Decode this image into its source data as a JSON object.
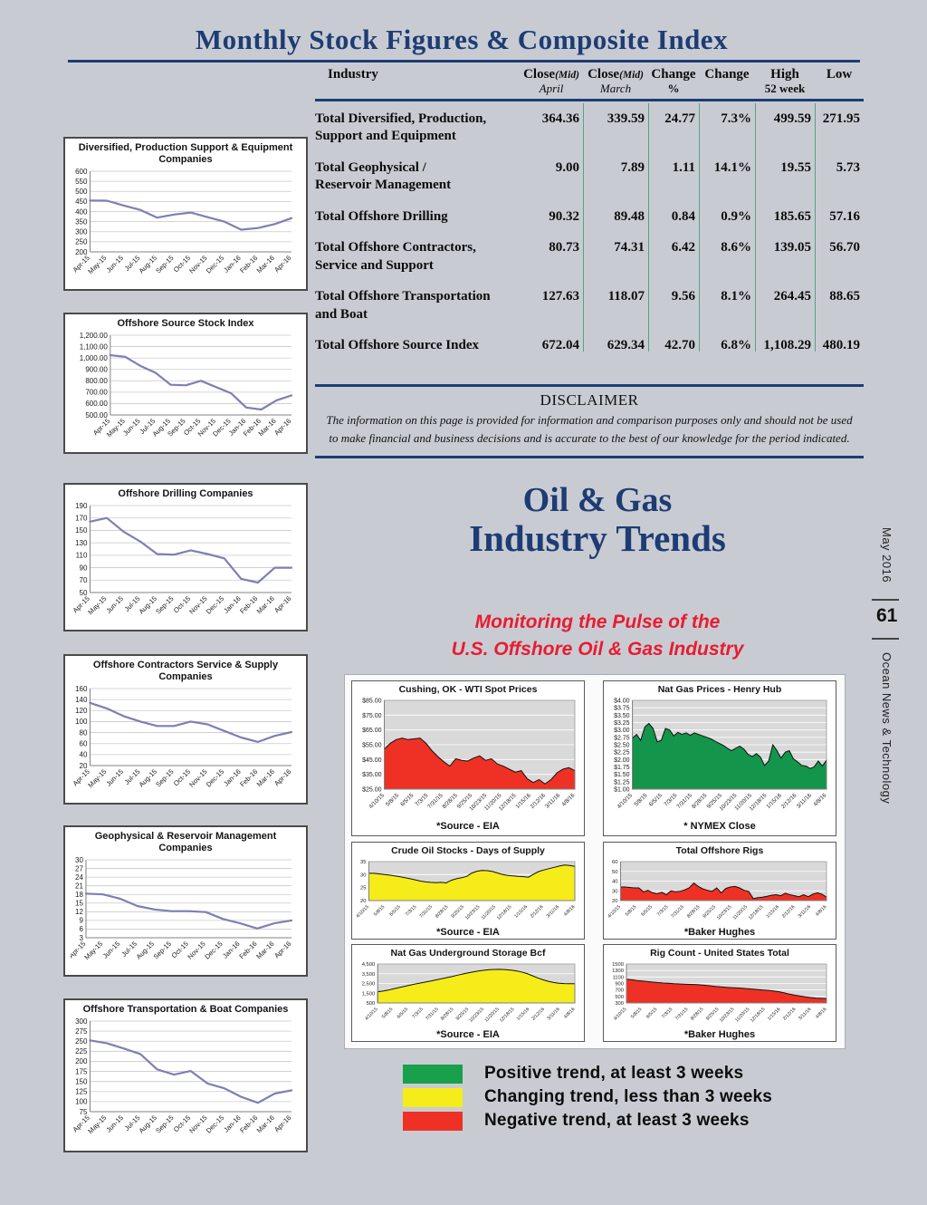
{
  "page": {
    "title": "Monthly Stock Figures & Composite Index"
  },
  "table": {
    "header": {
      "industry": "Industry",
      "cols": [
        {
          "main": "Close",
          "mid": "(Mid)",
          "sub": "April"
        },
        {
          "main": "Close",
          "mid": "(Mid)",
          "sub": "March"
        },
        {
          "main": "Change",
          "mid": "",
          "sub": "%"
        },
        {
          "main": "Change",
          "mid": "",
          "sub": ""
        },
        {
          "main": "High",
          "mid": "",
          "sub": "52 week"
        },
        {
          "main": "Low",
          "mid": "",
          "sub": ""
        }
      ]
    },
    "rows": [
      {
        "industry": "Total Diversified, Production,\nSupport and Equipment",
        "close_april": "364.36",
        "close_march": "339.59",
        "change": "24.77",
        "change_pct": "7.3%",
        "high": "499.59",
        "low": "271.95"
      },
      {
        "industry": "Total Geophysical /\nReservoir Management",
        "close_april": "9.00",
        "close_march": "7.89",
        "change": "1.11",
        "change_pct": "14.1%",
        "high": "19.55",
        "low": "5.73"
      },
      {
        "industry": "Total Offshore Drilling",
        "close_april": "90.32",
        "close_march": "89.48",
        "change": "0.84",
        "change_pct": "0.9%",
        "high": "185.65",
        "low": "57.16"
      },
      {
        "industry": "Total Offshore Contractors,\nService and Support",
        "close_april": "80.73",
        "close_march": "74.31",
        "change": "6.42",
        "change_pct": "8.6%",
        "high": "139.05",
        "low": "56.70"
      },
      {
        "industry": "Total Offshore Transportation\nand Boat",
        "close_april": "127.63",
        "close_march": "118.07",
        "change": "9.56",
        "change_pct": "8.1%",
        "high": "264.45",
        "low": "88.65"
      },
      {
        "industry": "Total Offshore Source Index",
        "close_april": "672.04",
        "close_march": "629.34",
        "change": "42.70",
        "change_pct": "6.8%",
        "high": "1,108.29",
        "low": "480.19"
      }
    ]
  },
  "disclaimer": {
    "title": "DISCLAIMER",
    "text": "The information on this page is provided for information and comparison purposes only and should not be used\nto make financial and business decisions and is accurate to the best of our knowledge for the period indicated."
  },
  "trends": {
    "title_line1": "Oil & Gas",
    "title_line2": "Industry Trends",
    "subtitle": "Monitoring the Pulse of the\nU.S. Offshore Oil & Gas Industry",
    "legend": [
      {
        "color": "#18a04a",
        "label": "Positive trend, at least 3 weeks"
      },
      {
        "color": "#f6ec19",
        "label": "Changing trend, less than 3 weeks"
      },
      {
        "color": "#ee3124",
        "label": "Negative trend, at least 3 weeks"
      }
    ]
  },
  "sidebar": {
    "issue": "May 2016",
    "page_number": "61",
    "publication": "Ocean News & Technology"
  },
  "chart_data": [
    {
      "id": "diversified-production-support",
      "type": "line",
      "title": "Diversified, Production Support & Equipment\nCompanies",
      "x_labels": [
        "Apr-15",
        "May-15",
        "Jun-15",
        "Jul-15",
        "Aug-15",
        "Sep-15",
        "Oct-15",
        "Nov-15",
        "Dec-15",
        "Jan-16",
        "Feb-16",
        "Mar-16",
        "Apr-16"
      ],
      "yticks": [
        "600",
        "550",
        "500",
        "450",
        "400",
        "350",
        "300",
        "250",
        "200"
      ],
      "ylim": [
        200,
        600
      ],
      "values": [
        455,
        454,
        430,
        408,
        370,
        385,
        395,
        372,
        350,
        310,
        318,
        338,
        367
      ],
      "line_color": "#7e7fb3"
    },
    {
      "id": "offshore-source-stock-index",
      "type": "line",
      "title": "Offshore Source Stock Index",
      "x_labels": [
        "Apr-15",
        "May-15",
        "Jun-15",
        "Jul-15",
        "Aug-15",
        "Sep-15",
        "Oct-15",
        "Nov-15",
        "Dec-15",
        "Jan-16",
        "Feb-16",
        "Mar-16",
        "Apr-16"
      ],
      "yticks": [
        "1,200.00",
        "1,100.00",
        "1,000.00",
        "900.00",
        "800.00",
        "700.00",
        "600.00",
        "500.00"
      ],
      "ylim": [
        500,
        1200
      ],
      "values": [
        1025,
        1010,
        930,
        870,
        765,
        760,
        800,
        745,
        690,
        565,
        548,
        628,
        672
      ],
      "line_color": "#7e7fb3"
    },
    {
      "id": "offshore-drilling-companies",
      "type": "line",
      "title": "Offshore Drilling Companies",
      "x_labels": [
        "Apr-15",
        "May-15",
        "Jun-15",
        "Jul-15",
        "Aug-15",
        "Sep-15",
        "Oct-15",
        "Nov-15",
        "Dec-15",
        "Jan-16",
        "Feb-16",
        "Mar-16",
        "Apr-16"
      ],
      "yticks": [
        "190",
        "170",
        "150",
        "130",
        "110",
        "90",
        "70",
        "50"
      ],
      "ylim": [
        50,
        190
      ],
      "values": [
        164,
        170,
        148,
        132,
        112,
        111,
        118,
        112,
        105,
        72,
        66,
        90,
        90
      ],
      "line_color": "#7e7fb3"
    },
    {
      "id": "offshore-contractors-service-supply",
      "type": "line",
      "title": "Offshore Contractors Service & Supply\nCompanies",
      "x_labels": [
        "Apr-15",
        "May-15",
        "Jun-15",
        "Jul-15",
        "Aug-15",
        "Sep-15",
        "Oct-15",
        "Nov-15",
        "Dec-15",
        "Jan-16",
        "Feb-16",
        "Mar-16",
        "Apr-16"
      ],
      "yticks": [
        "160",
        "140",
        "120",
        "100",
        "80",
        "60",
        "40",
        "20"
      ],
      "ylim": [
        20,
        160
      ],
      "values": [
        134,
        124,
        110,
        100,
        92,
        92,
        100,
        95,
        83,
        71,
        63,
        74,
        81
      ],
      "line_color": "#7e7fb3"
    },
    {
      "id": "geophysical-reservoir-management",
      "type": "line",
      "title": "Geophysical & Reservoir Management\nCompanies",
      "x_labels": [
        "Apr-15",
        "May-15",
        "Jun-15",
        "Jul-15",
        "Aug-15",
        "Sep-15",
        "Oct-15",
        "Nov-15",
        "Dec-15",
        "Jan-16",
        "Feb-16",
        "Mar-16",
        "Apr-16"
      ],
      "yticks": [
        "30",
        "27",
        "24",
        "21",
        "18",
        "15",
        "12",
        "9",
        "6",
        "3"
      ],
      "ylim": [
        3,
        30
      ],
      "values": [
        18.3,
        18,
        16.5,
        14,
        12.8,
        12.2,
        12.2,
        11.9,
        9.5,
        8,
        6.2,
        8,
        9
      ],
      "line_color": "#7e7fb3"
    },
    {
      "id": "offshore-transportation-boat",
      "type": "line",
      "title": "Offshore Transportation & Boat Companies",
      "x_labels": [
        "Apr-15",
        "May-15",
        "Jun-15",
        "Jul-15",
        "Aug-15",
        "Sep-15",
        "Oct-15",
        "Nov-15",
        "Dec-15",
        "Jan-16",
        "Feb-16",
        "Mar-16",
        "Apr-16"
      ],
      "yticks": [
        "300",
        "275",
        "250",
        "225",
        "200",
        "175",
        "150",
        "125",
        "100",
        "75"
      ],
      "ylim": [
        75,
        300
      ],
      "values": [
        252,
        245,
        232,
        218,
        180,
        167,
        176,
        145,
        133,
        112,
        97,
        120,
        128
      ],
      "line_color": "#7e7fb3"
    },
    {
      "id": "wti-spot-prices",
      "type": "area",
      "title": "Cushing, OK  - WTI Spot Prices",
      "source": "*Source - EIA",
      "x_labels": [
        "4/10/15",
        "5/8/15",
        "6/5/15",
        "7/3/15",
        "7/31/15",
        "8/28/15",
        "9/25/15",
        "10/23/15",
        "11/20/15",
        "12/18/15",
        "1/15/16",
        "2/12/16",
        "3/11/16",
        "4/8/16"
      ],
      "yticks": [
        "$85.00",
        "$75.00",
        "$65.00",
        "$55.00",
        "$45.00",
        "$35.00",
        "$25.00"
      ],
      "ylim": [
        25,
        85
      ],
      "values": [
        52,
        56,
        58.5,
        59.5,
        58.5,
        59,
        59.5,
        56,
        51,
        47,
        43.5,
        40.5,
        45.5,
        44.5,
        44,
        46,
        47.5,
        44.5,
        45.5,
        42,
        40.5,
        38.5,
        36.5,
        37.5,
        32,
        29.5,
        31.5,
        28.5,
        31.5,
        36,
        38.5,
        39.5,
        37.5
      ],
      "fill": "#ee3124"
    },
    {
      "id": "nat-gas-prices-henry-hub",
      "type": "area",
      "title": "Nat Gas Prices - Henry Hub",
      "source": "* NYMEX Close",
      "x_labels": [
        "4/10/15",
        "5/8/15",
        "6/5/15",
        "7/3/15",
        "7/31/15",
        "8/28/15",
        "9/25/15",
        "10/23/15",
        "11/20/15",
        "12/18/15",
        "1/15/16",
        "2/12/16",
        "3/11/16",
        "4/8/16"
      ],
      "yticks": [
        "$4.00",
        "$3.75",
        "$3.50",
        "$3.25",
        "$3.00",
        "$2.75",
        "$2.50",
        "$2.25",
        "$2.00",
        "$1.75",
        "$1.50",
        "$1.25",
        "$1.00"
      ],
      "ylim": [
        1,
        4
      ],
      "values": [
        2.72,
        2.85,
        2.65,
        3.1,
        3.22,
        3.05,
        2.6,
        2.65,
        3.05,
        3.0,
        2.8,
        2.92,
        2.85,
        2.9,
        2.82,
        2.9,
        2.85,
        2.8,
        2.75,
        2.7,
        2.62,
        2.55,
        2.48,
        2.38,
        2.3,
        2.38,
        2.45,
        2.35,
        2.18,
        2.1,
        2.2,
        2.08,
        1.8,
        1.95,
        2.5,
        2.3,
        2.05,
        2.25,
        2.3,
        2.02,
        1.92,
        1.8,
        1.78,
        1.7,
        1.75,
        1.95,
        1.78,
        1.98
      ],
      "fill": "#13954b"
    },
    {
      "id": "crude-oil-stocks-days-supply",
      "type": "area",
      "title": "Crude Oil Stocks - Days of Supply",
      "source": "*Source - EIA",
      "x_labels": [
        "4/10/15",
        "5/8/15",
        "6/5/15",
        "7/3/15",
        "7/31/15",
        "8/28/15",
        "9/25/15",
        "10/23/15",
        "11/20/15",
        "12/18/15",
        "1/15/16",
        "2/12/16",
        "3/11/16",
        "4/8/16"
      ],
      "yticks": [
        "35",
        "30",
        "25",
        "20"
      ],
      "ylim": [
        20,
        35
      ],
      "values": [
        30.5,
        30.5,
        30.3,
        30,
        29.8,
        29.5,
        29.2,
        28.8,
        28.4,
        28,
        27.5,
        27.2,
        27,
        26.9,
        27,
        26.8,
        27.8,
        28.4,
        28.8,
        29.3,
        30.6,
        31.3,
        31.6,
        31.5,
        31.2,
        30.6,
        30,
        29.7,
        29.5,
        29.3,
        29.2,
        29,
        30.2,
        31.2,
        31.8,
        32.3,
        32.8,
        33.3,
        33.7,
        33.5,
        33.2
      ],
      "fill": "#f6ec19"
    },
    {
      "id": "total-offshore-rigs",
      "type": "area",
      "title": "Total Offshore Rigs",
      "source": "*Baker Hughes",
      "x_labels": [
        "4/10/15",
        "5/8/15",
        "6/5/15",
        "7/3/15",
        "7/31/15",
        "8/28/15",
        "9/25/15",
        "10/23/15",
        "11/20/15",
        "12/18/15",
        "1/15/16",
        "2/12/16",
        "3/11/16",
        "4/8/16"
      ],
      "yticks": [
        "60",
        "50",
        "40",
        "30",
        "20"
      ],
      "ylim": [
        20,
        60
      ],
      "values": [
        34,
        34,
        33.5,
        33,
        33,
        29,
        30.5,
        28,
        27,
        28.5,
        26,
        30,
        29,
        29.5,
        31,
        33,
        38,
        34.5,
        32,
        30.5,
        29.5,
        33,
        28,
        32.5,
        34,
        34.5,
        33,
        30.5,
        29.5,
        22,
        23,
        23.5,
        24.5,
        25.5,
        26,
        25,
        27.5,
        26,
        25,
        24,
        26,
        24,
        26.5,
        28,
        26.5,
        23.5
      ],
      "fill": "#ee3124"
    },
    {
      "id": "nat-gas-underground-storage",
      "type": "area",
      "title": "Nat Gas Underground Storage Bcf",
      "source": "*Source - EIA",
      "x_labels": [
        "4/10/15",
        "5/8/15",
        "6/5/15",
        "7/3/15",
        "7/31/15",
        "8/28/15",
        "9/25/15",
        "10/23/15",
        "11/20/15",
        "12/18/15",
        "1/15/16",
        "2/12/16",
        "3/11/16",
        "4/8/16"
      ],
      "yticks": [
        "4,500",
        "3,500",
        "2,500",
        "1,500",
        "500"
      ],
      "ylim": [
        500,
        4500
      ],
      "values": [
        1650,
        1720,
        1820,
        1950,
        2080,
        2200,
        2320,
        2440,
        2550,
        2650,
        2760,
        2870,
        2980,
        3100,
        3230,
        3360,
        3480,
        3600,
        3700,
        3790,
        3860,
        3910,
        3940,
        3950,
        3920,
        3870,
        3790,
        3680,
        3520,
        3300,
        3080,
        2880,
        2720,
        2600,
        2530,
        2490,
        2470,
        2480
      ],
      "fill": "#f6ec19"
    },
    {
      "id": "rig-count-united-states",
      "type": "area",
      "title": "Rig Count - United States Total",
      "source": "*Baker Hughes",
      "x_labels": [
        "4/10/15",
        "5/8/15",
        "6/5/15",
        "7/3/15",
        "7/31/15",
        "8/28/15",
        "9/25/15",
        "10/23/15",
        "11/20/15",
        "12/18/15",
        "1/15/16",
        "2/12/16",
        "3/11/16",
        "4/8/16"
      ],
      "yticks": [
        "1500",
        "1300",
        "1100",
        "900",
        "700",
        "500",
        "300"
      ],
      "ylim": [
        300,
        1500
      ],
      "values": [
        1030,
        1015,
        990,
        975,
        958,
        942,
        928,
        915,
        905,
        895,
        885,
        878,
        872,
        868,
        858,
        845,
        828,
        808,
        795,
        782,
        772,
        762,
        752,
        740,
        728,
        712,
        700,
        688,
        668,
        645,
        610,
        572,
        540,
        512,
        488,
        468,
        452,
        442,
        438
      ],
      "fill": "#ee3124"
    }
  ]
}
